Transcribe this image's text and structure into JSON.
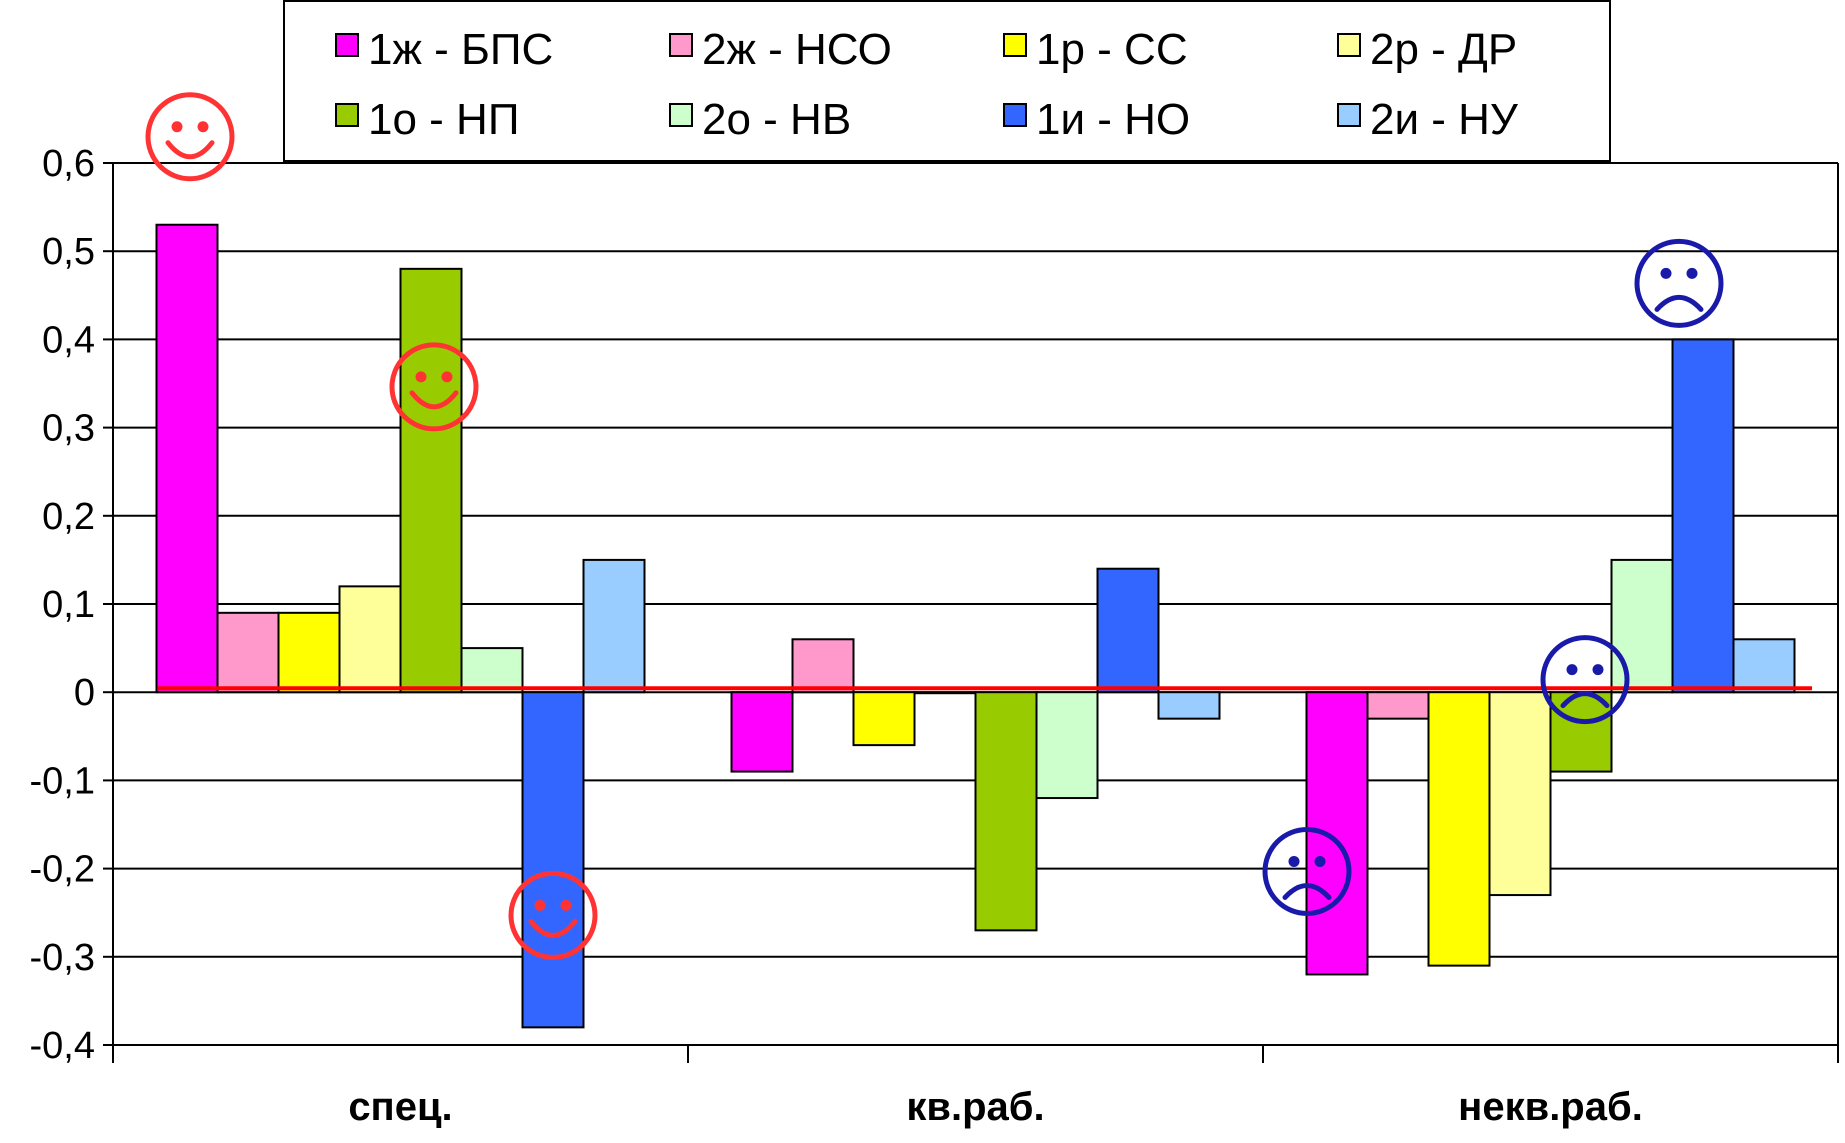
{
  "chart_data": {
    "type": "bar",
    "categories": [
      "спец.",
      "кв.раб.",
      "некв.раб."
    ],
    "series": [
      {
        "name": "1ж - БПС",
        "color": "#FF00FF",
        "values": [
          0.53,
          -0.09,
          -0.32
        ]
      },
      {
        "name": "2ж - НСО",
        "color": "#FF99CC",
        "values": [
          0.09,
          0.06,
          -0.03
        ]
      },
      {
        "name": "1р - СС",
        "color": "#FFFF00",
        "values": [
          0.09,
          -0.06,
          -0.31
        ]
      },
      {
        "name": "2р - ДР",
        "color": "#FFFF99",
        "values": [
          0.12,
          0.0,
          -0.23
        ]
      },
      {
        "name": "1о - НП",
        "color": "#99CC00",
        "values": [
          0.48,
          -0.27,
          -0.09
        ]
      },
      {
        "name": "2о - НВ",
        "color": "#CCFFCC",
        "values": [
          0.05,
          -0.12,
          0.15
        ]
      },
      {
        "name": "1и - НО",
        "color": "#3366FF",
        "values": [
          -0.38,
          0.14,
          0.4
        ]
      },
      {
        "name": "2и - НУ",
        "color": "#99CCFF",
        "values": [
          0.15,
          -0.03,
          0.06
        ]
      }
    ],
    "y_ticks": [
      "0,6",
      "0,5",
      "0,4",
      "0,3",
      "0,2",
      "0,1",
      "0",
      "-0,1",
      "-0,2",
      "-0,3",
      "-0,4"
    ],
    "ylim": [
      -0.4,
      0.6
    ],
    "grid": true,
    "legend_position": "top",
    "reference_line": {
      "value": 0,
      "color": "#FF0000"
    },
    "annotations": [
      {
        "kind": "smiley-happy",
        "color": "#FF3333",
        "category": "спец.",
        "series": "1ж - БПС"
      },
      {
        "kind": "smiley-happy",
        "color": "#FF3333",
        "category": "спец.",
        "series": "1о - НП"
      },
      {
        "kind": "smiley-happy",
        "color": "#FF3333",
        "category": "спец.",
        "series": "1и - НО"
      },
      {
        "kind": "smiley-sad",
        "color": "#1A1AAA",
        "category": "некв.раб.",
        "series": "1ж - БПС"
      },
      {
        "kind": "smiley-sad",
        "color": "#1A1AAA",
        "category": "некв.раб.",
        "series": "1о - НП"
      },
      {
        "kind": "smiley-sad",
        "color": "#1A1AAA",
        "category": "некв.раб.",
        "series": "1и - НО"
      }
    ]
  }
}
